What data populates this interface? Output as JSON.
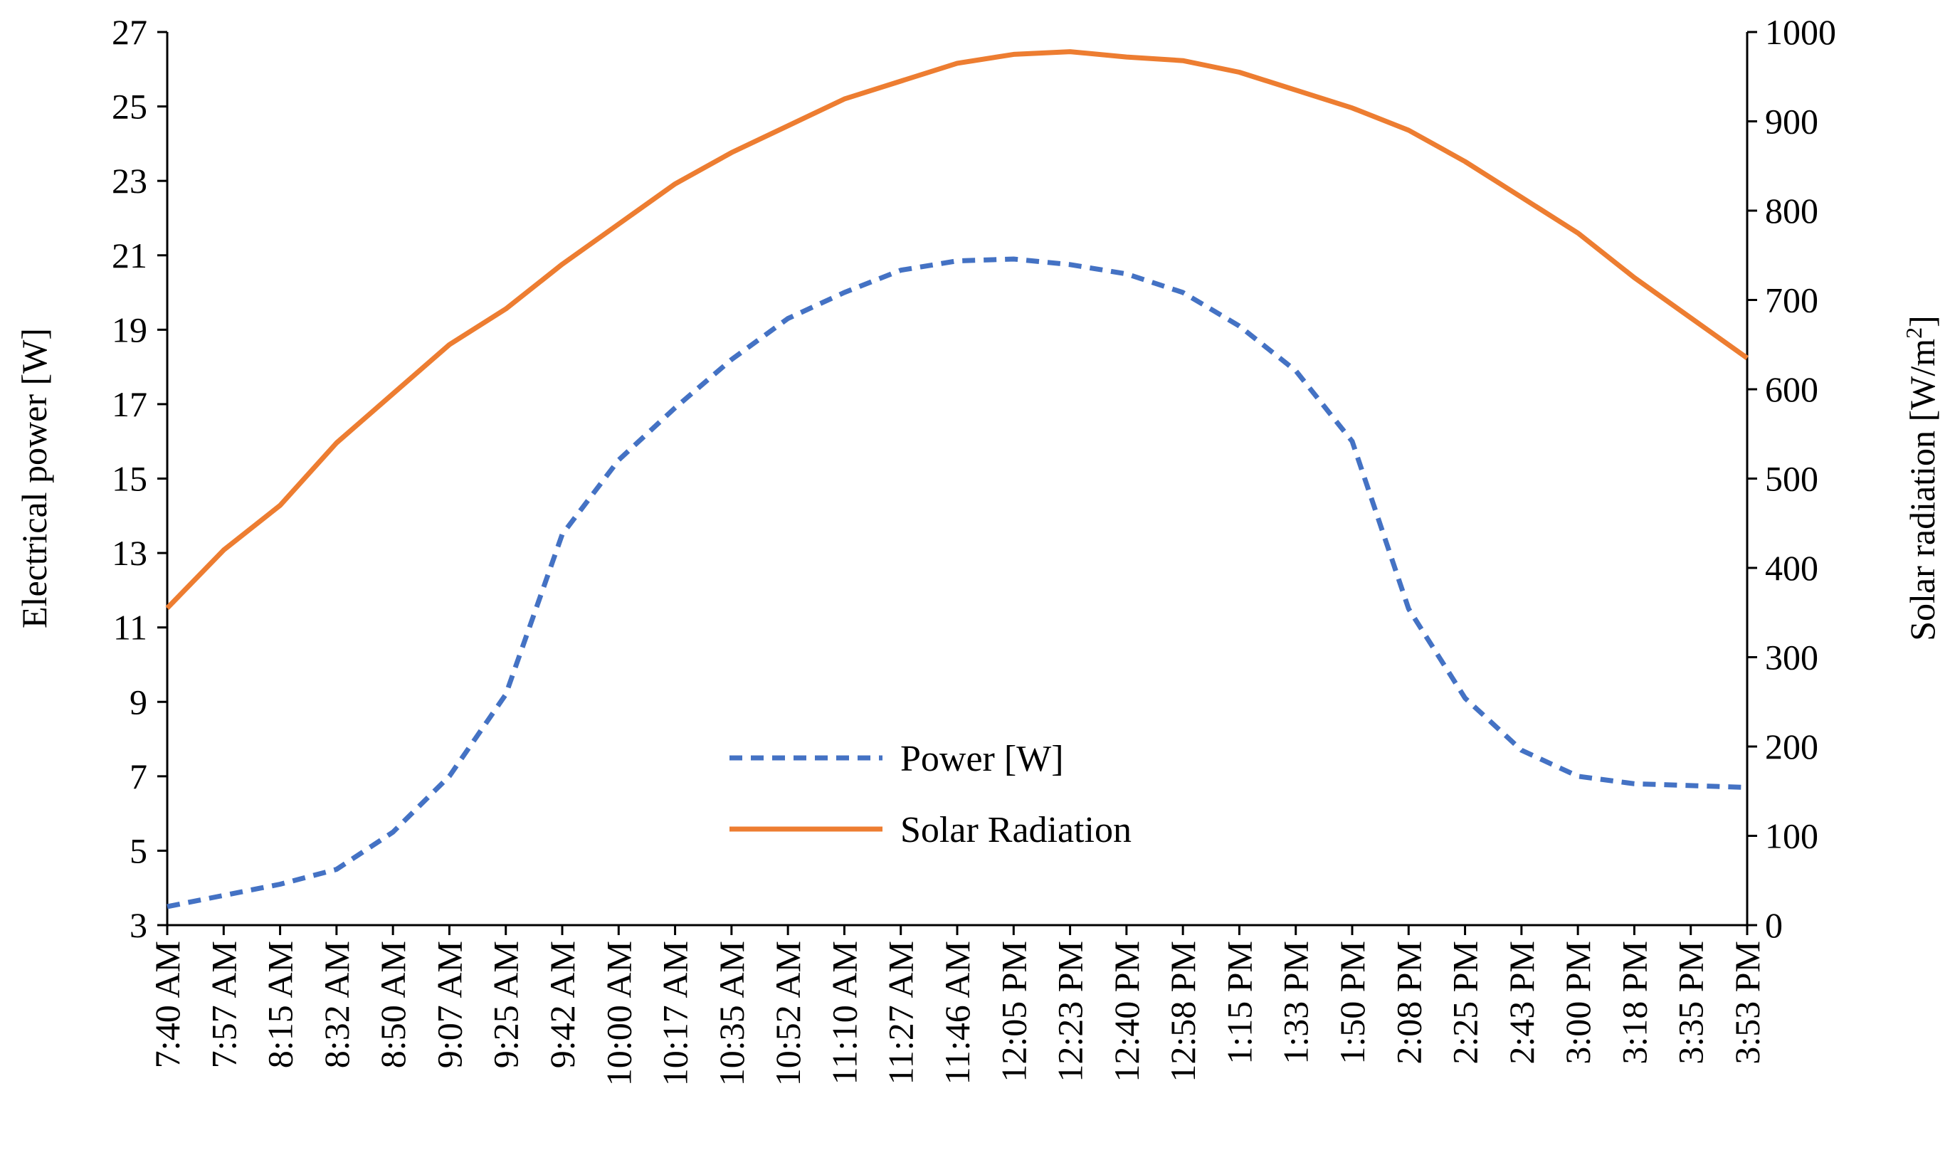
{
  "chart_data": {
    "type": "line",
    "categories": [
      "7:40 AM",
      "7:57 AM",
      "8:15 AM",
      "8:32 AM",
      "8:50 AM",
      "9:07 AM",
      "9:25 AM",
      "9:42 AM",
      "10:00 AM",
      "10:17 AM",
      "10:35 AM",
      "10:52 AM",
      "11:10 AM",
      "11:27 AM",
      "11:46 AM",
      "12:05 PM",
      "12:23 PM",
      "12:40 PM",
      "12:58 PM",
      "1:15 PM",
      "1:33 PM",
      "1:50 PM",
      "2:08 PM",
      "2:25 PM",
      "2:43 PM",
      "3:00 PM",
      "3:18 PM",
      "3:35 PM",
      "3:53 PM"
    ],
    "ylabel": "Electrical power [W]",
    "y2label": "Solar radiation [W/m",
    "y2label_sup": "2",
    "y2label_end": "]",
    "ylim": [
      3,
      27
    ],
    "y2lim": [
      0,
      1000
    ],
    "yticks": [
      "3",
      "5",
      "7",
      "9",
      "11",
      "13",
      "15",
      "17",
      "19",
      "21",
      "23",
      "25",
      "27"
    ],
    "y2ticks": [
      "0",
      "100",
      "200",
      "300",
      "400",
      "500",
      "600",
      "700",
      "800",
      "900",
      "1000"
    ],
    "grid": false,
    "legend_position": "center-bottom",
    "series": [
      {
        "name": "Power [W]",
        "axis": "left",
        "color": "#4472C4",
        "style": "dashed",
        "values": [
          3.5,
          3.8,
          4.1,
          4.5,
          5.5,
          7.0,
          9.2,
          13.5,
          15.5,
          16.9,
          18.2,
          19.3,
          20.0,
          20.6,
          20.85,
          20.9,
          20.75,
          20.5,
          20.0,
          19.1,
          17.9,
          16.0,
          11.5,
          9.1,
          7.7,
          7.0,
          6.8,
          6.75,
          6.7
        ]
      },
      {
        "name": "Solar Radiation",
        "axis": "right",
        "color": "#ED7D31",
        "style": "solid",
        "values": [
          355,
          420,
          470,
          540,
          595,
          650,
          690,
          740,
          785,
          830,
          865,
          895,
          925,
          945,
          965,
          975,
          978,
          972,
          968,
          955,
          935,
          915,
          890,
          855,
          815,
          775,
          725,
          680,
          635
        ]
      }
    ]
  }
}
